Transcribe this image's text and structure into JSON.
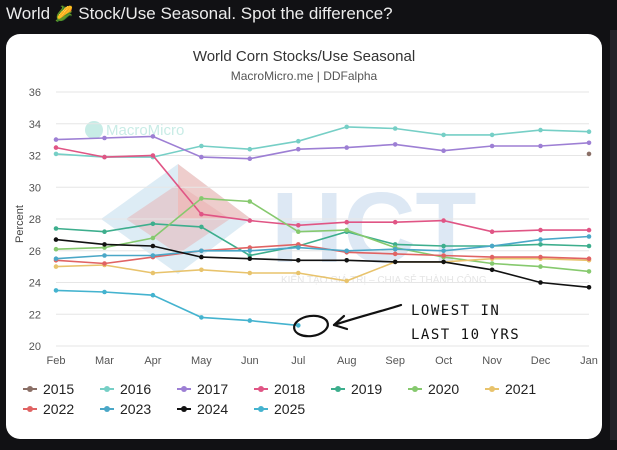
{
  "post": {
    "title_before": "World",
    "emoji": "🌽",
    "title_after": "Stock/Use Seasonal. Spot the difference?"
  },
  "chart_data": {
    "type": "line",
    "title": "World Corn Stocks/Use Seasonal",
    "subtitle": "MacroMicro.me | DDFalpha",
    "xlabel": "",
    "ylabel": "Percent",
    "categories": [
      "Feb",
      "Mar",
      "Apr",
      "May",
      "Jun",
      "Jul",
      "Aug",
      "Sep",
      "Oct",
      "Nov",
      "Dec",
      "Jan"
    ],
    "yticks": [
      20,
      22,
      24,
      26,
      28,
      30,
      32,
      34,
      36
    ],
    "ylim": [
      20,
      36
    ],
    "grid": true,
    "legend_position": "bottom",
    "series": [
      {
        "name": "2015",
        "color": "#8a6f66",
        "values": [
          null,
          null,
          null,
          null,
          null,
          null,
          null,
          null,
          null,
          null,
          null,
          32.1
        ]
      },
      {
        "name": "2016",
        "color": "#76cfc6",
        "values": [
          32.1,
          31.9,
          31.9,
          32.6,
          32.4,
          32.9,
          33.8,
          33.7,
          33.3,
          33.3,
          33.6,
          33.5
        ]
      },
      {
        "name": "2017",
        "color": "#9d7fd4",
        "values": [
          33.0,
          33.1,
          33.2,
          31.9,
          31.8,
          32.4,
          32.5,
          32.7,
          32.3,
          32.6,
          32.6,
          32.8
        ]
      },
      {
        "name": "2018",
        "color": "#e05585",
        "values": [
          32.5,
          31.9,
          32.0,
          28.3,
          27.9,
          27.6,
          27.8,
          27.8,
          27.9,
          27.2,
          27.3,
          27.3
        ]
      },
      {
        "name": "2019",
        "color": "#3dae8d",
        "values": [
          27.4,
          27.2,
          27.7,
          27.5,
          25.7,
          26.3,
          27.2,
          26.4,
          26.3,
          26.3,
          26.4,
          26.3
        ]
      },
      {
        "name": "2020",
        "color": "#86c96e",
        "values": [
          26.1,
          26.2,
          26.8,
          29.3,
          29.1,
          27.2,
          27.3,
          26.2,
          25.6,
          25.2,
          25.0,
          24.7
        ]
      },
      {
        "name": "2021",
        "color": "#e8c36c",
        "values": [
          25.0,
          25.1,
          24.6,
          24.8,
          24.6,
          24.6,
          24.1,
          25.3,
          25.3,
          25.5,
          25.5,
          25.4
        ]
      },
      {
        "name": "2022",
        "color": "#e06363",
        "values": [
          25.4,
          25.2,
          25.6,
          26.0,
          26.2,
          26.4,
          25.9,
          25.8,
          25.7,
          25.6,
          25.6,
          25.5
        ]
      },
      {
        "name": "2023",
        "color": "#4aa7c7",
        "values": [
          25.5,
          25.7,
          25.7,
          26.0,
          26.0,
          26.2,
          26.0,
          26.1,
          26.0,
          26.3,
          26.7,
          26.9
        ]
      },
      {
        "name": "2024",
        "color": "#111111",
        "values": [
          26.7,
          26.4,
          26.3,
          25.6,
          25.5,
          25.4,
          25.4,
          25.3,
          25.3,
          24.8,
          24.0,
          23.7
        ]
      },
      {
        "name": "2025",
        "color": "#44b3cf",
        "values": [
          23.5,
          23.4,
          23.2,
          21.8,
          21.6,
          21.3,
          null,
          null,
          null,
          null,
          null,
          null
        ]
      }
    ]
  },
  "annotation": {
    "line1": "LOWEST IN",
    "line2": "LAST 10 YRS",
    "color": "#111111"
  },
  "watermark": {
    "logo_text": "MacroMicro",
    "brand": "HCT",
    "tagline": "KIẾN TẠO GIÁ TRỊ – CHIA SẺ THÀNH CÔNG"
  }
}
